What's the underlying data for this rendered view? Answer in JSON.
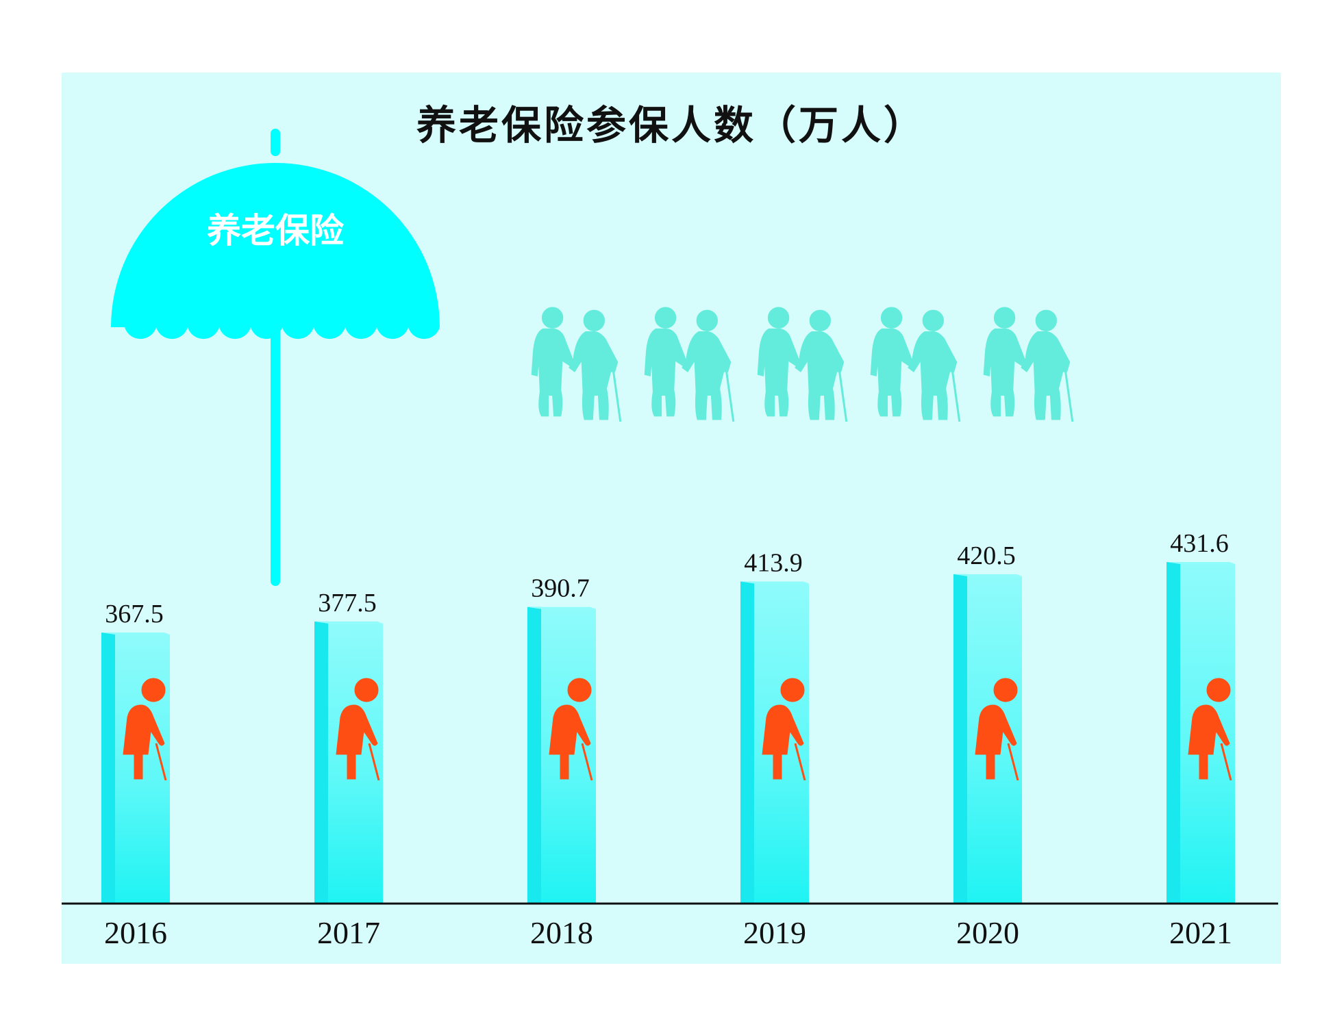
{
  "chart_data": {
    "type": "bar",
    "title": "养老保险参保人数（万人）",
    "categories": [
      "2016",
      "2017",
      "2018",
      "2019",
      "2020",
      "2021"
    ],
    "values": [
      367.5,
      377.5,
      390.7,
      413.9,
      420.5,
      431.6
    ],
    "xlabel": "",
    "ylabel": "",
    "grid": false,
    "legend": "none"
  },
  "umbrella": {
    "label": "养老保险"
  },
  "icons": {
    "umbrella": "umbrella-icon",
    "elderly_couple": "elderly-couple-icon",
    "elderly_person": "elderly-person-with-cane-icon"
  },
  "colors": {
    "background": "#d6fcfb",
    "umbrella": "#00ffff",
    "bar_front": "#3ff6f6",
    "bar_side": "#19e8ef",
    "bar_top": "#8ffbfb",
    "couple": "#63ecdb",
    "elder_icon": "#ff4e14",
    "axis": "#111111"
  }
}
